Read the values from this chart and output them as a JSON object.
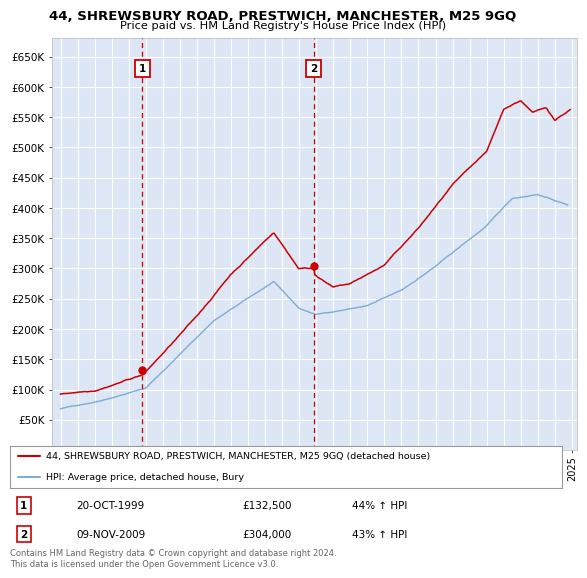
{
  "title": "44, SHREWSBURY ROAD, PRESTWICH, MANCHESTER, M25 9GQ",
  "subtitle": "Price paid vs. HM Land Registry's House Price Index (HPI)",
  "legend_label_red": "44, SHREWSBURY ROAD, PRESTWICH, MANCHESTER, M25 9GQ (detached house)",
  "legend_label_blue": "HPI: Average price, detached house, Bury",
  "purchase1_date": "20-OCT-1999",
  "purchase1_price": "£132,500",
  "purchase1_hpi": "44% ↑ HPI",
  "purchase1_year": 1999.8,
  "purchase1_value": 132500,
  "purchase2_date": "09-NOV-2009",
  "purchase2_price": "£304,000",
  "purchase2_hpi": "43% ↑ HPI",
  "purchase2_year": 2009.85,
  "purchase2_value": 304000,
  "footer": "Contains HM Land Registry data © Crown copyright and database right 2024.\nThis data is licensed under the Open Government Licence v3.0.",
  "plot_bg_color": "#dce6f5",
  "red_color": "#cc0000",
  "blue_color": "#7dadd4",
  "ylim": [
    0,
    680000
  ],
  "yticks": [
    0,
    50000,
    100000,
    150000,
    200000,
    250000,
    300000,
    350000,
    400000,
    450000,
    500000,
    550000,
    600000,
    650000
  ],
  "xlim_start": 1994.5,
  "xlim_end": 2025.3
}
